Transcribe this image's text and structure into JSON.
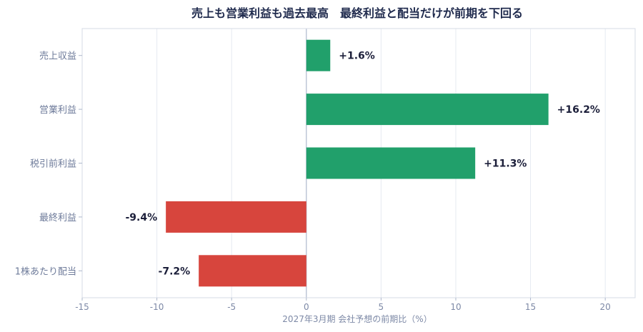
{
  "chart_data": {
    "type": "bar",
    "orientation": "horizontal",
    "title": "売上も営業利益も過去最高　最終利益と配当だけが前期を下回る",
    "xlabel": "2027年3月期 会社予想の前期比（%）",
    "ylabel": "",
    "categories": [
      "売上収益",
      "営業利益",
      "税引前利益",
      "最終利益",
      "1株あたり配当"
    ],
    "values": [
      1.6,
      16.2,
      11.3,
      -9.4,
      -7.2
    ],
    "value_labels": [
      "+1.6%",
      "+16.2%",
      "+11.3%",
      "-9.4%",
      "-7.2%"
    ],
    "xlim": [
      -15,
      22
    ],
    "xticks": [
      -15,
      -10,
      -5,
      0,
      5,
      10,
      15,
      20
    ],
    "grid": "vertical",
    "colors": {
      "positive": "#21a06b",
      "negative": "#d7453d"
    }
  }
}
